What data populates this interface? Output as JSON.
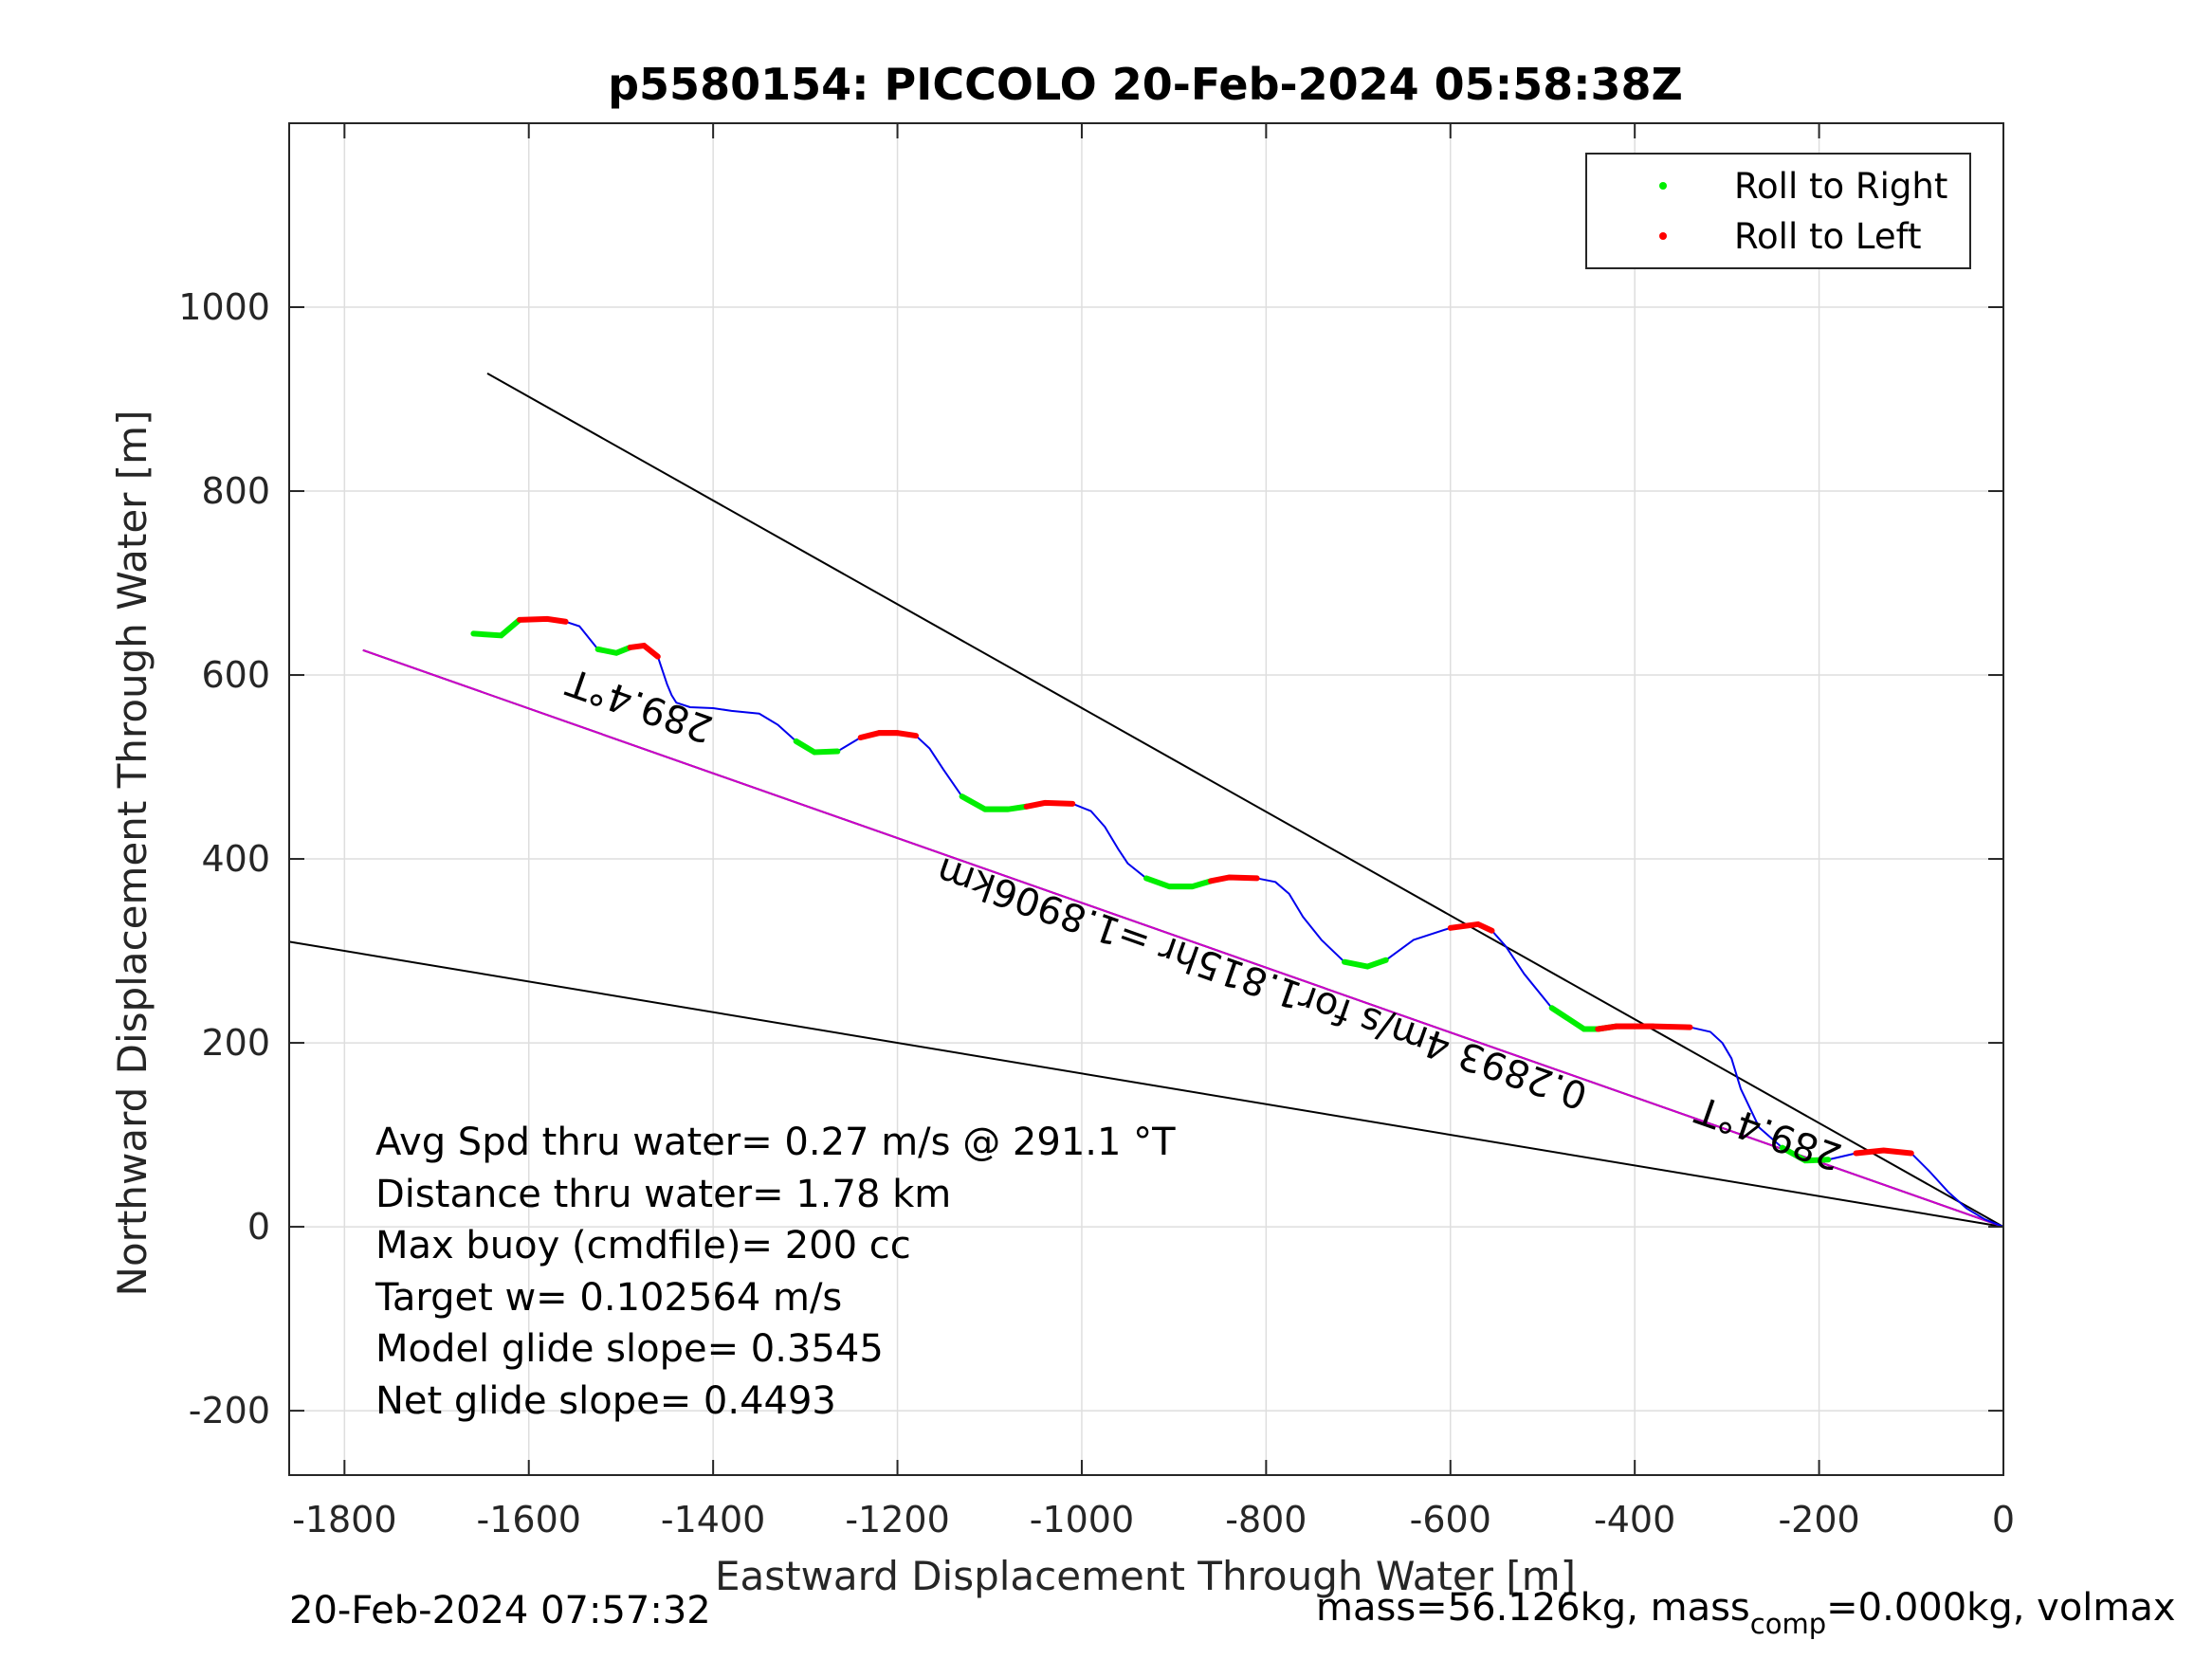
{
  "chart_data": {
    "type": "line",
    "title": "p5580154: PICCOLO 20-Feb-2024 05:58:38Z",
    "xlabel": "Eastward Displacement Through Water [m]",
    "ylabel": "Northward Displacement Through Water [m]",
    "xlim": [
      -1860,
      0
    ],
    "ylim": [
      -270,
      1200
    ],
    "xticks": [
      -1800,
      -1600,
      -1400,
      -1200,
      -1000,
      -800,
      -600,
      -400,
      -200,
      0
    ],
    "xtick_labels": [
      "-1800",
      "-1600",
      "-1400",
      "-1200",
      "-1000",
      "-800",
      "-600",
      "-400",
      "-200",
      "0"
    ],
    "yticks": [
      -200,
      0,
      200,
      400,
      600,
      800,
      1000
    ],
    "ytick_labels": [
      "-200",
      "0",
      "200",
      "400",
      "600",
      "800",
      "1000"
    ],
    "grid": true,
    "legend": {
      "location": "top-right",
      "entries": [
        {
          "label": "Roll to Right",
          "color": "#00ee00"
        },
        {
          "label": "Roll to Left",
          "color": "#ff0000"
        }
      ]
    },
    "reference_lines": [
      {
        "color": "#000000",
        "x": [
          0,
          -1645
        ],
        "y": [
          0,
          928
        ]
      },
      {
        "color": "#000000",
        "x": [
          0,
          -1780
        ],
        "y": [
          0,
          627
        ]
      },
      {
        "color": "#000000",
        "x": [
          0,
          -1860
        ],
        "y": [
          0,
          310
        ]
      },
      {
        "color": "#cc00cc",
        "x": [
          0,
          -1780
        ],
        "y": [
          0,
          627
        ]
      }
    ],
    "track": {
      "color": "#0000ee",
      "x": [
        -1660,
        -1630,
        -1610,
        -1580,
        -1560,
        -1545,
        -1525,
        -1505,
        -1490,
        -1475,
        -1460,
        -1450,
        -1445,
        -1440,
        -1425,
        -1400,
        -1380,
        -1350,
        -1330,
        -1310,
        -1290,
        -1265,
        -1240,
        -1220,
        -1200,
        -1180,
        -1165,
        -1150,
        -1130,
        -1105,
        -1080,
        -1060,
        -1040,
        -1010,
        -990,
        -975,
        -960,
        -950,
        -930,
        -905,
        -880,
        -860,
        -840,
        -810,
        -790,
        -775,
        -760,
        -740,
        -715,
        -690,
        -670,
        -640,
        -600,
        -570,
        -555,
        -540,
        -520,
        -490,
        -455,
        -440,
        -420,
        -380,
        -340,
        -318,
        -305,
        -295,
        -285,
        -265,
        -240,
        -215,
        -190,
        -160,
        -130,
        -100,
        -80,
        -60,
        -40,
        -20,
        0
      ],
      "y": [
        645,
        643,
        660,
        661,
        658,
        653,
        628,
        624,
        630,
        632,
        620,
        590,
        578,
        570,
        565,
        564,
        561,
        558,
        546,
        528,
        516,
        517,
        532,
        537,
        537,
        534,
        520,
        497,
        468,
        454,
        454,
        457,
        461,
        460,
        452,
        435,
        410,
        395,
        379,
        370,
        370,
        376,
        380,
        379,
        375,
        362,
        337,
        312,
        288,
        283,
        290,
        312,
        325,
        329,
        322,
        305,
        275,
        238,
        215,
        215,
        218,
        218,
        217,
        212,
        200,
        183,
        150,
        108,
        86,
        72,
        73,
        80,
        83,
        80,
        60,
        38,
        20,
        8,
        0
      ]
    },
    "annotations": [
      {
        "text": "289.4°T",
        "x": -1475,
        "y": 580,
        "rotation_deg": 199.4
      },
      {
        "text": "289.4°T",
        "x": -250,
        "y": 115,
        "rotation_deg": 199.4
      },
      {
        "text": "0.2893 4m/s for1.815hr =1.8906km",
        "x": -800,
        "y": 278,
        "rotation_deg": 199.4
      }
    ]
  },
  "stats_box": {
    "line1": "Avg Spd thru water=  0.27 m/s @ 291.1 °T",
    "line2": "Distance thru water=  1.78 km",
    "line3": "Max buoy (cmdfile)= 200 cc",
    "line4": "Target w= 0.102564 m/s",
    "line5": "Model glide slope= 0.3545",
    "line6": "Net glide slope= 0.4493"
  },
  "footer": {
    "timestamp": "20-Feb-2024 07:57:32",
    "mass_text": "mass=56.126kg, mass",
    "mass_sub": "comp",
    "mass_rest": "=0.000kg, volmax"
  }
}
